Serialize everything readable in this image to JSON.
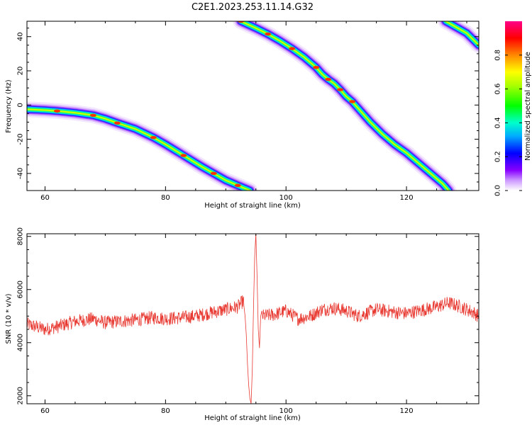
{
  "figure_title": "C2E1.2023.253.11.14.G32",
  "colors": {
    "trace": "#e83a32",
    "frame": "#000000"
  },
  "chart_data": [
    {
      "type": "heatmap",
      "xlabel": "Height of straight line (km)",
      "ylabel": "Frequency (Hz)",
      "xlim": [
        57,
        132
      ],
      "ylim": [
        -50,
        49
      ],
      "xticks": [
        60,
        80,
        100,
        120
      ],
      "yticks": [
        -40,
        -20,
        0,
        20,
        40
      ],
      "colorbar": {
        "label": "Normalized spectral amplitude",
        "range": [
          0,
          1
        ],
        "ticks": [
          0.0,
          0.2,
          0.4,
          0.6,
          0.8
        ],
        "colormap": "rainbow"
      },
      "traces": [
        {
          "name": "",
          "points": [
            [
              57,
              -2.5
            ],
            [
              60,
              -3
            ],
            [
              62,
              -3.5
            ],
            [
              65,
              -4.5
            ],
            [
              68,
              -6
            ],
            [
              70,
              -8
            ],
            [
              72,
              -10.5
            ],
            [
              75,
              -14
            ],
            [
              78,
              -19
            ],
            [
              80,
              -23
            ],
            [
              83,
              -29.5
            ],
            [
              86,
              -36
            ],
            [
              88,
              -40
            ],
            [
              90,
              -44
            ],
            [
              92,
              -47
            ],
            [
              94,
              -50
            ]
          ]
        },
        {
          "name": "",
          "points": [
            [
              92.5,
              49
            ],
            [
              95,
              45
            ],
            [
              97,
              41.5
            ],
            [
              99,
              37.5
            ],
            [
              101,
              33
            ],
            [
              103,
              28
            ],
            [
              105,
              22
            ],
            [
              106,
              18
            ],
            [
              107,
              15
            ],
            [
              108,
              12.5
            ],
            [
              109,
              9
            ],
            [
              110,
              5
            ],
            [
              111,
              2
            ],
            [
              112,
              -2
            ],
            [
              114,
              -10
            ],
            [
              116,
              -17
            ],
            [
              118,
              -23
            ],
            [
              120,
              -28
            ],
            [
              122,
              -34
            ],
            [
              124,
              -40
            ],
            [
              126,
              -46
            ],
            [
              127,
              -50
            ]
          ]
        },
        {
          "name": "",
          "points": [
            [
              126.5,
              49
            ],
            [
              128,
              46
            ],
            [
              130,
              42
            ],
            [
              131,
              38.5
            ],
            [
              132,
              35
            ]
          ]
        }
      ]
    },
    {
      "type": "line",
      "xlabel": "Height of straight line (km)",
      "ylabel": "SNR (10 * v/v)",
      "xlim": [
        57,
        132
      ],
      "ylim": [
        1700,
        8100
      ],
      "xticks": [
        60,
        80,
        100,
        120
      ],
      "yticks": [
        2000,
        4000,
        6000,
        8000
      ],
      "series": [
        {
          "name": "",
          "baseline": [
            [
              57,
              4700
            ],
            [
              60,
              4500
            ],
            [
              62,
              4600
            ],
            [
              65,
              4800
            ],
            [
              68,
              4900
            ],
            [
              70,
              4750
            ],
            [
              72,
              4800
            ],
            [
              75,
              4850
            ],
            [
              78,
              4950
            ],
            [
              80,
              4900
            ],
            [
              83,
              4950
            ],
            [
              85,
              5000
            ],
            [
              88,
              5150
            ],
            [
              90,
              5250
            ],
            [
              92,
              5350
            ],
            [
              93,
              5600
            ],
            [
              94,
              5800
            ],
            [
              96,
              5000
            ],
            [
              98,
              5050
            ],
            [
              100,
              5200
            ],
            [
              102,
              4900
            ],
            [
              104,
              5000
            ],
            [
              106,
              5250
            ],
            [
              108,
              5300
            ],
            [
              110,
              5200
            ],
            [
              112,
              5000
            ],
            [
              115,
              5250
            ],
            [
              118,
              5150
            ],
            [
              120,
              5100
            ],
            [
              123,
              5250
            ],
            [
              125,
              5350
            ],
            [
              127,
              5500
            ],
            [
              129,
              5350
            ],
            [
              131,
              5150
            ],
            [
              132,
              5000
            ]
          ],
          "spike": [
            [
              93.0,
              5400
            ],
            [
              93.2,
              5000
            ],
            [
              93.4,
              4300
            ],
            [
              93.6,
              3200
            ],
            [
              93.8,
              2400
            ],
            [
              94.0,
              1900
            ],
            [
              94.2,
              1700
            ],
            [
              94.4,
              3000
            ],
            [
              94.6,
              5200
            ],
            [
              94.8,
              7200
            ],
            [
              95.0,
              8100
            ],
            [
              95.2,
              6500
            ],
            [
              95.4,
              4500
            ],
            [
              95.6,
              3800
            ],
            [
              95.8,
              5000
            ],
            [
              96.0,
              5200
            ]
          ]
        }
      ]
    }
  ]
}
